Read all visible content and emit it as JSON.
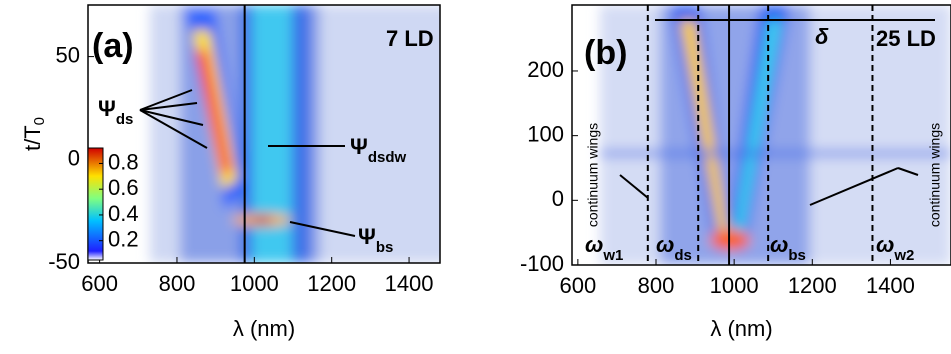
{
  "chart_data": [
    {
      "type": "heatmap",
      "panel_label": "(a)",
      "tag": "7 LD",
      "xlabel": "λ (nm)",
      "ylabel": {
        "main": "t/T",
        "sub": "0"
      },
      "xlim": [
        570,
        1480
      ],
      "ylim": [
        -50,
        75
      ],
      "xticks": [
        600,
        800,
        1000,
        1200,
        1400
      ],
      "yticks": [
        -50,
        0,
        50
      ],
      "solid_lines": [
        975
      ],
      "dashed_lines": [],
      "annotations": [
        {
          "symbol": "Ψ",
          "sub": "ds"
        },
        {
          "symbol": "Ψ",
          "sub": "dsdw"
        },
        {
          "symbol": "Ψ",
          "sub": "bs"
        }
      ],
      "colorbar": {
        "lim": [
          0.05,
          0.92
        ],
        "ticks": [
          0.2,
          0.4,
          0.6,
          0.8
        ]
      }
    },
    {
      "type": "heatmap",
      "panel_label": "(b)",
      "tag": "25 LD",
      "xlabel": "λ (nm)",
      "xlim": [
        585,
        1555
      ],
      "ylim": [
        -100,
        302
      ],
      "xticks": [
        600,
        800,
        1000,
        1200,
        1400
      ],
      "yticks": [
        -100,
        0,
        100,
        200
      ],
      "solid_lines": [
        987
      ],
      "dashed_lines": [
        779,
        908,
        1087,
        1354
      ],
      "annotations": [
        {
          "symbol": "ω",
          "sub": "w1"
        },
        {
          "symbol": "ω",
          "sub": "ds"
        },
        {
          "symbol": "ω",
          "sub": "bs"
        },
        {
          "symbol": "ω",
          "sub": "w2"
        },
        {
          "symbol": "δ"
        }
      ],
      "side_labels": [
        "continuum wings",
        "continuum wings"
      ]
    }
  ]
}
